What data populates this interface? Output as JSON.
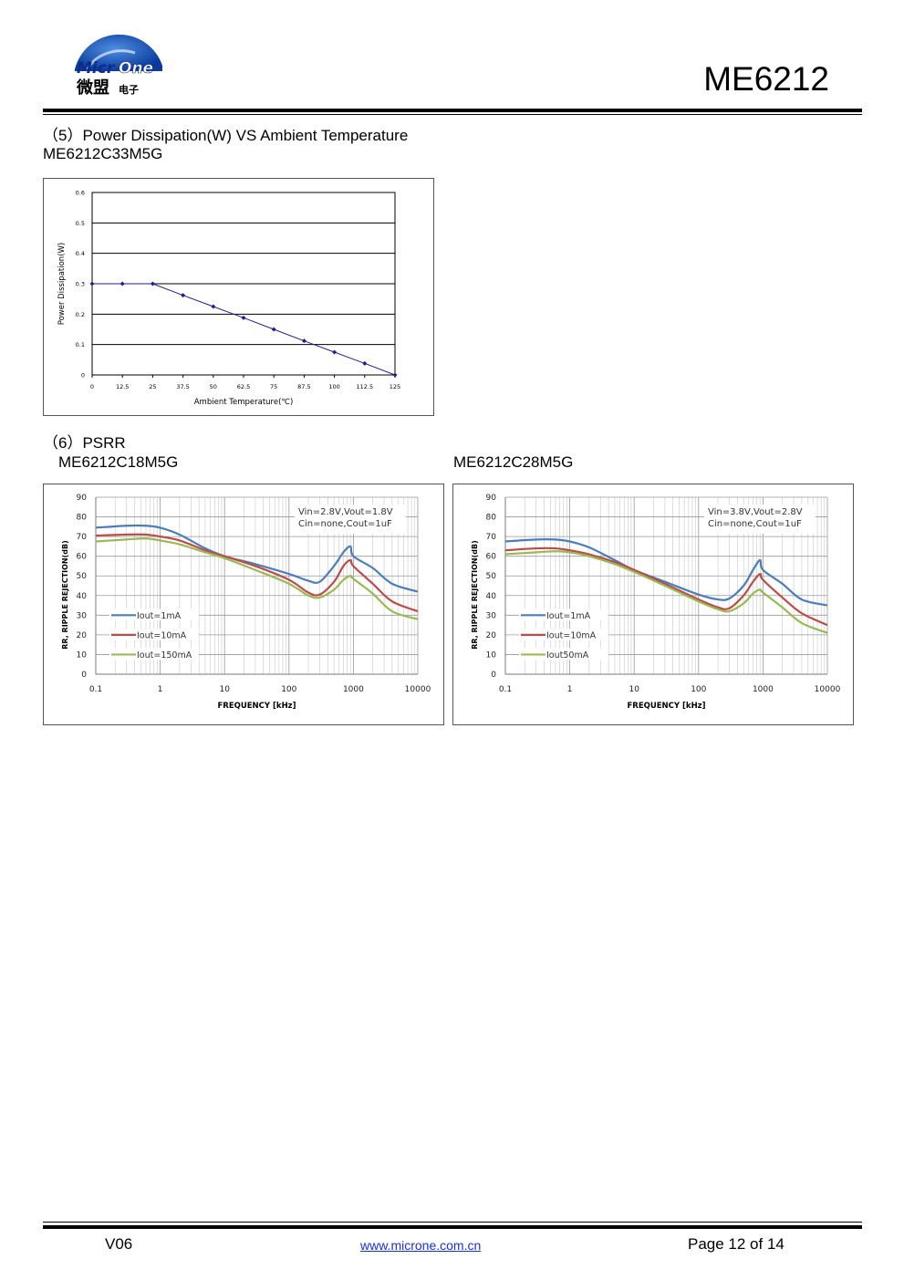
{
  "header": {
    "logo_text_latin": "MicrOne",
    "logo_text_cn": "微盟",
    "logo_text_cn_small": "电子",
    "part_number": "ME6212"
  },
  "section5": {
    "heading": "（5）Power Dissipation(W) VS Ambient Temperature",
    "subheading": "ME6212C33M5G"
  },
  "section6": {
    "heading": "（6）PSRR",
    "left_model": "ME6212C18M5G",
    "right_model": "ME6212C28M5G"
  },
  "chart_data": [
    {
      "type": "line",
      "title": "",
      "xlabel": "Ambient Temperature(℃)",
      "ylabel": "Power Dissipation(W)",
      "xlim": [
        0,
        125
      ],
      "ylim": [
        0,
        0.6
      ],
      "x_ticks": [
        "0",
        "12.5",
        "25",
        "37.5",
        "50",
        "62.5",
        "75",
        "87.5",
        "100",
        "112.5",
        "125"
      ],
      "y_ticks": [
        "0",
        "0.1",
        "0.2",
        "0.3",
        "0.4",
        "0.5",
        "0.6"
      ],
      "grid": "horizontal",
      "color": "#1f1f8c",
      "series": [
        {
          "x": [
            0,
            12.5,
            25,
            37.5,
            50,
            62.5,
            75,
            87.5,
            100,
            112.5,
            125
          ],
          "values": [
            0.3,
            0.3,
            0.3,
            0.262,
            0.225,
            0.188,
            0.15,
            0.112,
            0.075,
            0.038,
            0
          ]
        }
      ]
    },
    {
      "type": "line",
      "xlabel": "FREQUENCY [kHz]",
      "ylabel": "RR, RIPPLE REJECTION(dB)",
      "x_scale": "log",
      "xlim": [
        0.1,
        10000
      ],
      "ylim": [
        0,
        90
      ],
      "x_ticks": [
        "0.1",
        "1",
        "10",
        "100",
        "1000",
        "10000"
      ],
      "y_ticks": [
        "0",
        "10",
        "20",
        "30",
        "40",
        "50",
        "60",
        "70",
        "80",
        "90"
      ],
      "annotation": [
        "Vin=2.8V,Vout=1.8V",
        "Cin=none,Cout=1uF"
      ],
      "legend_position": "bottom-left",
      "series": [
        {
          "name": "Iout=1mA",
          "color": "#4a7ebb",
          "x": [
            0.1,
            0.3,
            0.6,
            1,
            2,
            5,
            10,
            30,
            100,
            200,
            300,
            500,
            700,
            900,
            1000,
            2000,
            4000,
            10000
          ],
          "values": [
            74.5,
            75.5,
            75.5,
            74.5,
            71,
            64,
            60,
            56,
            51,
            47.5,
            47,
            55,
            62,
            65,
            60,
            54,
            46,
            42
          ]
        },
        {
          "name": "Iout=10mA",
          "color": "#be4b48",
          "x": [
            0.1,
            0.3,
            0.6,
            1,
            2,
            5,
            10,
            30,
            100,
            200,
            300,
            500,
            700,
            900,
            1000,
            2000,
            4000,
            10000
          ],
          "values": [
            70.5,
            71,
            71,
            70,
            68,
            63,
            60,
            55,
            48,
            41.5,
            40.5,
            47,
            55,
            58,
            55,
            46,
            37,
            32
          ]
        },
        {
          "name": "Iout=150mA",
          "color": "#98b954",
          "x": [
            0.1,
            0.3,
            0.6,
            1,
            2,
            5,
            10,
            30,
            100,
            200,
            300,
            500,
            700,
            900,
            1000,
            2000,
            4000,
            10000
          ],
          "values": [
            67.5,
            68.5,
            69,
            68,
            66,
            62,
            59,
            53,
            46,
            40,
            39,
            43,
            48,
            50,
            48.5,
            41,
            32,
            28
          ]
        }
      ]
    },
    {
      "type": "line",
      "xlabel": "FREQUENCY [kHz]",
      "ylabel": "RR, RIPPLE REJECTION(dB)",
      "x_scale": "log",
      "xlim": [
        0.1,
        10000
      ],
      "ylim": [
        0,
        90
      ],
      "x_ticks": [
        "0.1",
        "1",
        "10",
        "100",
        "1000",
        "10000"
      ],
      "y_ticks": [
        "0",
        "10",
        "20",
        "30",
        "40",
        "50",
        "60",
        "70",
        "80",
        "90"
      ],
      "annotation": [
        "Vin=3.8V,Vout=2.8V",
        "Cin=none,Cout=1uF"
      ],
      "legend_position": "bottom-left",
      "series": [
        {
          "name": "Iout=1mA",
          "color": "#4a7ebb",
          "x": [
            0.1,
            0.3,
            0.6,
            1,
            2,
            5,
            10,
            30,
            100,
            200,
            300,
            500,
            700,
            900,
            1000,
            2000,
            4000,
            10000
          ],
          "values": [
            67.5,
            68.5,
            68.5,
            67.5,
            64.5,
            58,
            53,
            47,
            40.5,
            38,
            38.5,
            45,
            53,
            58,
            53,
            46,
            38,
            35
          ]
        },
        {
          "name": "Iout=10mA",
          "color": "#be4b48",
          "x": [
            0.1,
            0.3,
            0.6,
            1,
            2,
            5,
            10,
            30,
            100,
            200,
            300,
            500,
            700,
            900,
            1000,
            2000,
            4000,
            10000
          ],
          "values": [
            63,
            64,
            64,
            63,
            61,
            57,
            53,
            46,
            38,
            34,
            33.5,
            40,
            47,
            51,
            48,
            39,
            31,
            25
          ]
        },
        {
          "name": "Iout50mA",
          "color": "#98b954",
          "x": [
            0.1,
            0.3,
            0.6,
            1,
            2,
            5,
            10,
            30,
            100,
            200,
            300,
            500,
            700,
            900,
            1000,
            2000,
            4000,
            10000
          ],
          "values": [
            61,
            62,
            62.5,
            62,
            60,
            56,
            52,
            45,
            37,
            33,
            32,
            36,
            41,
            43,
            41.5,
            34,
            26,
            21
          ]
        }
      ]
    }
  ],
  "footer": {
    "version": "V06",
    "url": "www.microne.com.cn",
    "page": "Page 12 of 14"
  }
}
